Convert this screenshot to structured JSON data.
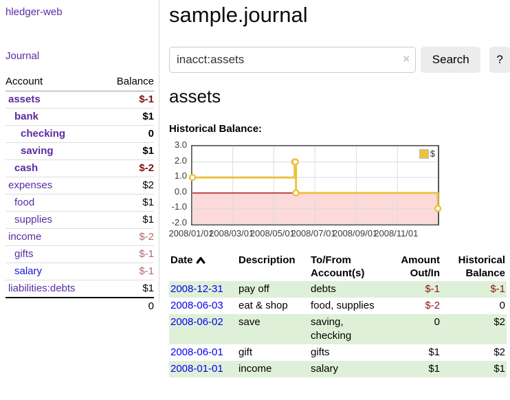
{
  "app": {
    "brand": "hledger-web",
    "nav": {
      "journal": "Journal"
    }
  },
  "sidebar": {
    "accounts": {
      "header_account": "Account",
      "header_balance": "Balance",
      "rows": [
        {
          "name": "assets",
          "balance": "$-1",
          "depth": 1
        },
        {
          "name": "bank",
          "balance": "$1",
          "depth": 2
        },
        {
          "name": "checking",
          "balance": "0",
          "depth": 3
        },
        {
          "name": "saving",
          "balance": "$1",
          "depth": 3
        },
        {
          "name": "cash",
          "balance": "$-2",
          "depth": 2
        },
        {
          "name": "expenses",
          "balance": "$2",
          "depth": 1
        },
        {
          "name": "food",
          "balance": "$1",
          "depth": 2
        },
        {
          "name": "supplies",
          "balance": "$1",
          "depth": 2
        },
        {
          "name": "income",
          "balance": "$-2",
          "depth": 1
        },
        {
          "name": "gifts",
          "balance": "$-1",
          "depth": 2
        },
        {
          "name": "salary",
          "balance": "$-1",
          "depth": 2
        },
        {
          "name": "liabilities:debts",
          "balance": "$1",
          "depth": 1
        }
      ],
      "total": "0"
    }
  },
  "main": {
    "title": "sample.journal",
    "search": {
      "query": "inacct:assets",
      "clear_icon": "×",
      "button": "Search",
      "help_button": "?"
    },
    "account_heading": "assets",
    "chart_heading": "Historical Balance:"
  },
  "chart_data": {
    "type": "line",
    "step": true,
    "title": "Historical Balance",
    "x_range": [
      "2008-01-01",
      "2008-12-31"
    ],
    "ylim": [
      -2,
      3
    ],
    "y_ticks": [
      {
        "label": "3.0",
        "value": 3
      },
      {
        "label": "2.0",
        "value": 2
      },
      {
        "label": "1.0",
        "value": 1
      },
      {
        "label": "0.0",
        "value": 0
      },
      {
        "label": "-1.0",
        "value": -1
      },
      {
        "label": "-2.0",
        "value": -2
      }
    ],
    "x_ticks": [
      {
        "label": "2008/01/01",
        "date": "2008-01-01"
      },
      {
        "label": "2008/03/01",
        "date": "2008-03-01"
      },
      {
        "label": "2008/05/01",
        "date": "2008-05-01"
      },
      {
        "label": "2008/07/01",
        "date": "2008-07-01"
      },
      {
        "label": "2008/09/01",
        "date": "2008-09-01"
      },
      {
        "label": "2008/11/01",
        "date": "2008-11-01"
      }
    ],
    "series": [
      {
        "name": "$",
        "color": "#edc240",
        "points": [
          [
            "2008-01-01",
            1
          ],
          [
            "2008-06-01",
            2
          ],
          [
            "2008-06-02",
            2
          ],
          [
            "2008-06-03",
            0
          ],
          [
            "2008-12-31",
            -1
          ]
        ]
      }
    ],
    "legend": {
      "label": "$",
      "position": "top-right"
    },
    "grid": true,
    "colors": {
      "plot_border": "#545454",
      "gridline": "#dcdcdc",
      "negative_region": "#fcdada",
      "zero_line": "#aa0000"
    }
  },
  "register": {
    "headers": {
      "date": "Date",
      "description": "Description",
      "accounts": "To/From Account(s)",
      "amount": "Amount Out/In",
      "balance": "Historical Balance"
    },
    "sort": {
      "column": "date",
      "direction": "ascending"
    },
    "rows": [
      {
        "date": "2008-12-31",
        "description": "pay off",
        "accounts": "debts",
        "amount": "$-1",
        "balance": "$-1",
        "amount_negative": true,
        "balance_negative": true
      },
      {
        "date": "2008-06-03",
        "description": "eat & shop",
        "accounts": "food, supplies",
        "amount": "$-2",
        "balance": "0",
        "amount_negative": true,
        "balance_negative": false
      },
      {
        "date": "2008-06-02",
        "description": "save",
        "accounts": "saving, checking",
        "amount": "0",
        "balance": "$2",
        "amount_negative": false,
        "balance_negative": false
      },
      {
        "date": "2008-06-01",
        "description": "gift",
        "accounts": "gifts",
        "amount": "$1",
        "balance": "$2",
        "amount_negative": false,
        "balance_negative": false
      },
      {
        "date": "2008-01-01",
        "description": "income",
        "accounts": "salary",
        "amount": "$1",
        "balance": "$1",
        "amount_negative": false,
        "balance_negative": false
      }
    ]
  }
}
